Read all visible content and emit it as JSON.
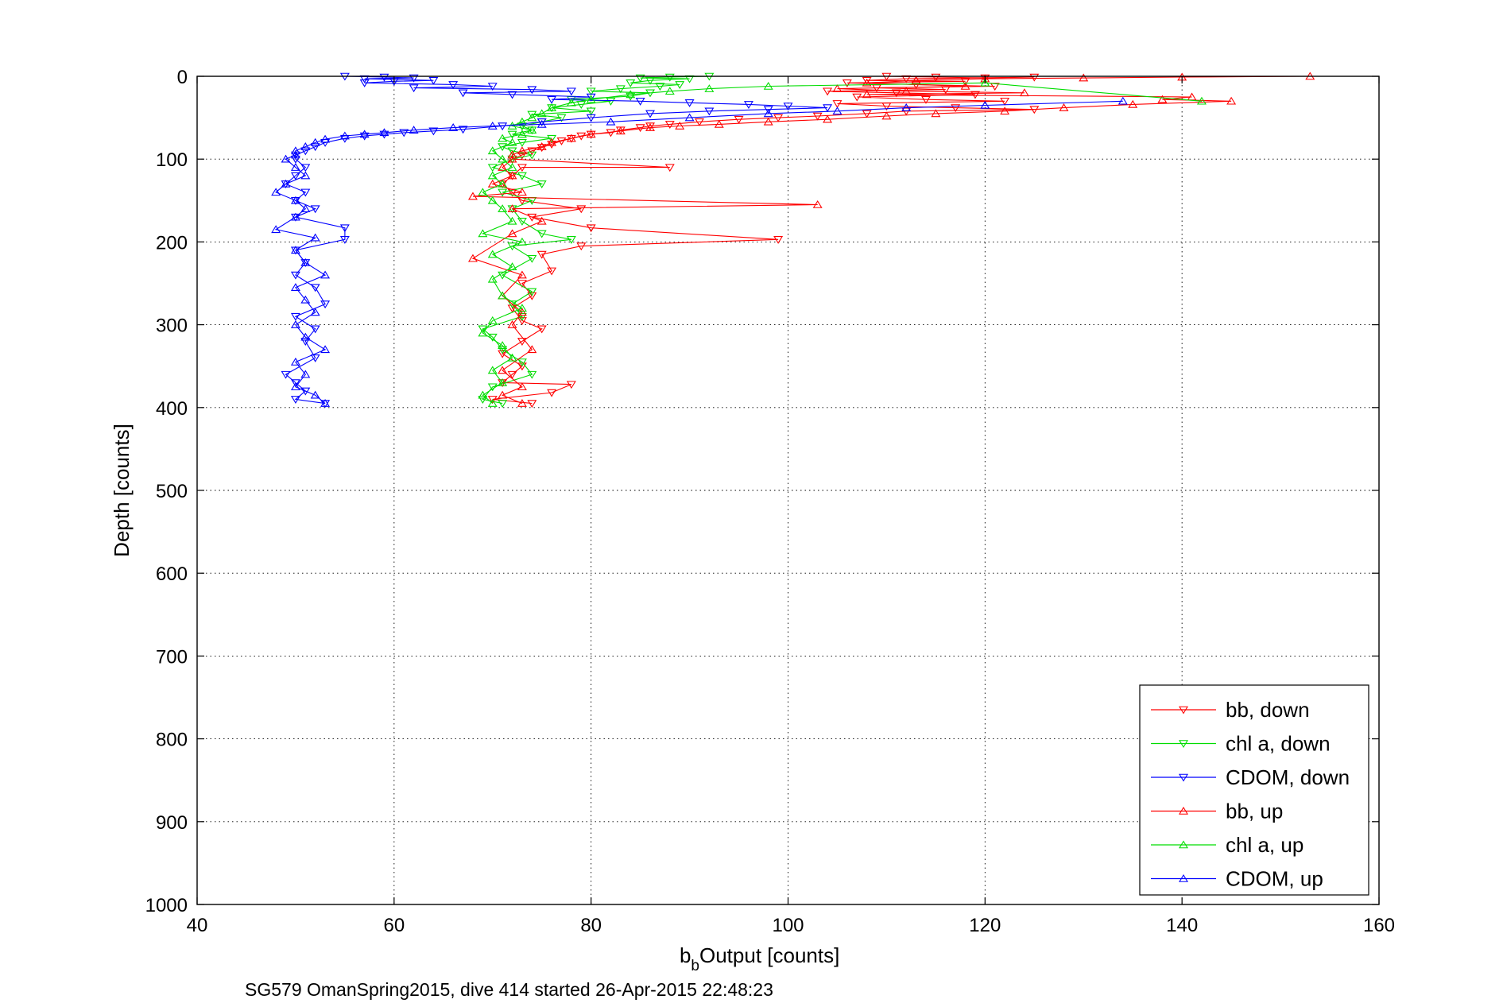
{
  "chart_data": {
    "type": "scatter",
    "title": "",
    "xlabel_main": "b",
    "xlabel_sub": "b",
    "xlabel_rest": " Output [counts]",
    "ylabel": "Depth [counts]",
    "caption": "SG579 OmanSpring2015, dive 414 started 26-Apr-2015 22:48:23",
    "xlim": [
      40,
      160
    ],
    "ylim": [
      0,
      1000
    ],
    "y_reversed": true,
    "grid": true,
    "legend_placement": "bottom-right",
    "x_ticks": [
      "40",
      "60",
      "80",
      "100",
      "120",
      "140",
      "160"
    ],
    "y_ticks": [
      "0",
      "100",
      "200",
      "300",
      "400",
      "500",
      "600",
      "700",
      "800",
      "900",
      "1000"
    ],
    "series": [
      {
        "name": "bb, down",
        "color": "#ff0000",
        "marker": "triangle-down",
        "points": [
          [
            110,
            0
          ],
          [
            115,
            1
          ],
          [
            120,
            2
          ],
          [
            125,
            1
          ],
          [
            112,
            3
          ],
          [
            108,
            5
          ],
          [
            118,
            6
          ],
          [
            106,
            8
          ],
          [
            113,
            10
          ],
          [
            121,
            12
          ],
          [
            109,
            14
          ],
          [
            116,
            16
          ],
          [
            104,
            18
          ],
          [
            111,
            20
          ],
          [
            119,
            22
          ],
          [
            107,
            25
          ],
          [
            114,
            28
          ],
          [
            122,
            30
          ],
          [
            105,
            33
          ],
          [
            110,
            36
          ],
          [
            117,
            38
          ],
          [
            125,
            40
          ],
          [
            112,
            42
          ],
          [
            108,
            45
          ],
          [
            103,
            48
          ],
          [
            99,
            50
          ],
          [
            95,
            52
          ],
          [
            91,
            55
          ],
          [
            88,
            58
          ],
          [
            86,
            60
          ],
          [
            85,
            62
          ],
          [
            83,
            65
          ],
          [
            82,
            68
          ],
          [
            80,
            70
          ],
          [
            79,
            72
          ],
          [
            78,
            75
          ],
          [
            77,
            78
          ],
          [
            76,
            82
          ],
          [
            75,
            86
          ],
          [
            74,
            90
          ],
          [
            73,
            95
          ],
          [
            72,
            100
          ],
          [
            88,
            110
          ],
          [
            73,
            110
          ],
          [
            72,
            120
          ],
          [
            71,
            130
          ],
          [
            72,
            140
          ],
          [
            73,
            150
          ],
          [
            79,
            160
          ],
          [
            74,
            170
          ],
          [
            80,
            183
          ],
          [
            99,
            197
          ],
          [
            79,
            205
          ],
          [
            75,
            215
          ],
          [
            76,
            235
          ],
          [
            73,
            250
          ],
          [
            74,
            265
          ],
          [
            72,
            280
          ],
          [
            73,
            295
          ],
          [
            75,
            305
          ],
          [
            73,
            320
          ],
          [
            71,
            335
          ],
          [
            73,
            350
          ],
          [
            72,
            360
          ],
          [
            71,
            370
          ],
          [
            78,
            372
          ],
          [
            76,
            382
          ],
          [
            70,
            390
          ],
          [
            74,
            395
          ]
        ]
      },
      {
        "name": "chl a, down",
        "color": "#00dd00",
        "marker": "triangle-down",
        "points": [
          [
            92,
            0
          ],
          [
            88,
            1
          ],
          [
            85,
            2
          ],
          [
            90,
            3
          ],
          [
            86,
            5
          ],
          [
            84,
            8
          ],
          [
            89,
            10
          ],
          [
            87,
            12
          ],
          [
            83,
            15
          ],
          [
            80,
            18
          ],
          [
            86,
            20
          ],
          [
            84,
            24
          ],
          [
            78,
            28
          ],
          [
            82,
            30
          ],
          [
            79,
            34
          ],
          [
            76,
            38
          ],
          [
            80,
            42
          ],
          [
            74,
            46
          ],
          [
            77,
            50
          ],
          [
            75,
            55
          ],
          [
            73,
            60
          ],
          [
            74,
            65
          ],
          [
            72,
            70
          ],
          [
            76,
            75
          ],
          [
            73,
            80
          ],
          [
            71,
            85
          ],
          [
            72,
            90
          ],
          [
            74,
            95
          ],
          [
            72,
            100
          ],
          [
            70,
            110
          ],
          [
            73,
            120
          ],
          [
            75,
            130
          ],
          [
            71,
            140
          ],
          [
            74,
            150
          ],
          [
            72,
            160
          ],
          [
            73,
            175
          ],
          [
            75,
            190
          ],
          [
            78,
            197
          ],
          [
            72,
            205
          ],
          [
            74,
            220
          ],
          [
            71,
            240
          ],
          [
            74,
            260
          ],
          [
            72,
            275
          ],
          [
            73,
            290
          ],
          [
            69,
            305
          ],
          [
            70,
            315
          ],
          [
            71,
            330
          ],
          [
            73,
            345
          ],
          [
            74,
            360
          ],
          [
            70,
            375
          ],
          [
            69,
            390
          ],
          [
            71,
            395
          ]
        ]
      },
      {
        "name": "CDOM, down",
        "color": "#0000ff",
        "marker": "triangle-down",
        "points": [
          [
            55,
            0
          ],
          [
            59,
            1
          ],
          [
            62,
            2
          ],
          [
            57,
            3
          ],
          [
            64,
            5
          ],
          [
            60,
            6
          ],
          [
            57,
            8
          ],
          [
            66,
            10
          ],
          [
            70,
            12
          ],
          [
            62,
            14
          ],
          [
            74,
            16
          ],
          [
            78,
            18
          ],
          [
            67,
            20
          ],
          [
            72,
            22
          ],
          [
            80,
            25
          ],
          [
            76,
            28
          ],
          [
            85,
            30
          ],
          [
            90,
            32
          ],
          [
            96,
            34
          ],
          [
            100,
            36
          ],
          [
            104,
            38
          ],
          [
            98,
            40
          ],
          [
            92,
            42
          ],
          [
            86,
            45
          ],
          [
            80,
            50
          ],
          [
            75,
            55
          ],
          [
            71,
            60
          ],
          [
            67,
            64
          ],
          [
            64,
            66
          ],
          [
            61,
            68
          ],
          [
            59,
            70
          ],
          [
            57,
            72
          ],
          [
            55,
            75
          ],
          [
            53,
            80
          ],
          [
            52,
            85
          ],
          [
            51,
            90
          ],
          [
            50,
            95
          ],
          [
            50,
            100
          ],
          [
            51,
            110
          ],
          [
            50,
            120
          ],
          [
            49,
            130
          ],
          [
            51,
            140
          ],
          [
            50,
            150
          ],
          [
            52,
            160
          ],
          [
            50,
            170
          ],
          [
            55,
            183
          ],
          [
            55,
            197
          ],
          [
            50,
            210
          ],
          [
            51,
            225
          ],
          [
            50,
            240
          ],
          [
            52,
            255
          ],
          [
            53,
            275
          ],
          [
            50,
            290
          ],
          [
            52,
            305
          ],
          [
            51,
            320
          ],
          [
            52,
            340
          ],
          [
            49,
            360
          ],
          [
            50,
            370
          ],
          [
            51,
            380
          ],
          [
            50,
            390
          ],
          [
            53,
            395
          ]
        ]
      },
      {
        "name": "bb, up",
        "color": "#ff0000",
        "marker": "triangle-up",
        "points": [
          [
            153,
            0
          ],
          [
            140,
            1
          ],
          [
            130,
            2
          ],
          [
            120,
            3
          ],
          [
            113,
            5
          ],
          [
            108,
            8
          ],
          [
            118,
            12
          ],
          [
            105,
            15
          ],
          [
            112,
            18
          ],
          [
            124,
            20
          ],
          [
            108,
            22
          ],
          [
            141,
            25
          ],
          [
            138,
            28
          ],
          [
            145,
            30
          ],
          [
            135,
            34
          ],
          [
            128,
            38
          ],
          [
            122,
            42
          ],
          [
            115,
            45
          ],
          [
            110,
            48
          ],
          [
            104,
            52
          ],
          [
            98,
            55
          ],
          [
            93,
            58
          ],
          [
            89,
            60
          ],
          [
            86,
            62
          ],
          [
            83,
            66
          ],
          [
            80,
            70
          ],
          [
            78,
            75
          ],
          [
            76,
            80
          ],
          [
            75,
            85
          ],
          [
            73,
            90
          ],
          [
            72,
            95
          ],
          [
            72,
            100
          ],
          [
            71,
            110
          ],
          [
            72,
            120
          ],
          [
            70,
            130
          ],
          [
            73,
            140
          ],
          [
            68,
            145
          ],
          [
            103,
            155
          ],
          [
            72,
            160
          ],
          [
            75,
            175
          ],
          [
            72,
            190
          ],
          [
            68,
            220
          ],
          [
            73,
            240
          ],
          [
            71,
            265
          ],
          [
            73,
            285
          ],
          [
            72,
            300
          ],
          [
            74,
            330
          ],
          [
            71,
            355
          ],
          [
            73,
            375
          ],
          [
            71,
            385
          ],
          [
            73,
            395
          ]
        ]
      },
      {
        "name": "chl a, up",
        "color": "#00dd00",
        "marker": "triangle-up",
        "points": [
          [
            142,
            30
          ],
          [
            120,
            8
          ],
          [
            98,
            12
          ],
          [
            92,
            15
          ],
          [
            88,
            18
          ],
          [
            84,
            22
          ],
          [
            80,
            28
          ],
          [
            78,
            32
          ],
          [
            76,
            38
          ],
          [
            75,
            45
          ],
          [
            74,
            50
          ],
          [
            73,
            55
          ],
          [
            72,
            60
          ],
          [
            74,
            65
          ],
          [
            73,
            70
          ],
          [
            71,
            75
          ],
          [
            72,
            80
          ],
          [
            70,
            90
          ],
          [
            71,
            100
          ],
          [
            72,
            110
          ],
          [
            70,
            120
          ],
          [
            71,
            130
          ],
          [
            69,
            140
          ],
          [
            70,
            150
          ],
          [
            71,
            160
          ],
          [
            72,
            175
          ],
          [
            69,
            190
          ],
          [
            73,
            200
          ],
          [
            70,
            215
          ],
          [
            72,
            230
          ],
          [
            70,
            245
          ],
          [
            71,
            265
          ],
          [
            73,
            280
          ],
          [
            70,
            295
          ],
          [
            69,
            310
          ],
          [
            71,
            325
          ],
          [
            72,
            340
          ],
          [
            70,
            355
          ],
          [
            71,
            370
          ],
          [
            69,
            385
          ],
          [
            70,
            395
          ]
        ]
      },
      {
        "name": "CDOM, up",
        "color": "#0000ff",
        "marker": "triangle-up",
        "points": [
          [
            134,
            30
          ],
          [
            120,
            35
          ],
          [
            112,
            38
          ],
          [
            105,
            42
          ],
          [
            98,
            45
          ],
          [
            90,
            50
          ],
          [
            82,
            55
          ],
          [
            75,
            58
          ],
          [
            70,
            60
          ],
          [
            66,
            62
          ],
          [
            62,
            65
          ],
          [
            59,
            68
          ],
          [
            57,
            70
          ],
          [
            55,
            72
          ],
          [
            53,
            76
          ],
          [
            52,
            80
          ],
          [
            51,
            85
          ],
          [
            50,
            90
          ],
          [
            50,
            95
          ],
          [
            49,
            100
          ],
          [
            50,
            110
          ],
          [
            51,
            120
          ],
          [
            49,
            130
          ],
          [
            48,
            140
          ],
          [
            50,
            150
          ],
          [
            51,
            160
          ],
          [
            50,
            170
          ],
          [
            48,
            185
          ],
          [
            52,
            195
          ],
          [
            50,
            210
          ],
          [
            51,
            225
          ],
          [
            53,
            240
          ],
          [
            50,
            255
          ],
          [
            51,
            270
          ],
          [
            52,
            285
          ],
          [
            50,
            300
          ],
          [
            51,
            315
          ],
          [
            53,
            330
          ],
          [
            50,
            345
          ],
          [
            51,
            360
          ],
          [
            50,
            375
          ],
          [
            52,
            385
          ],
          [
            53,
            395
          ]
        ]
      }
    ]
  }
}
